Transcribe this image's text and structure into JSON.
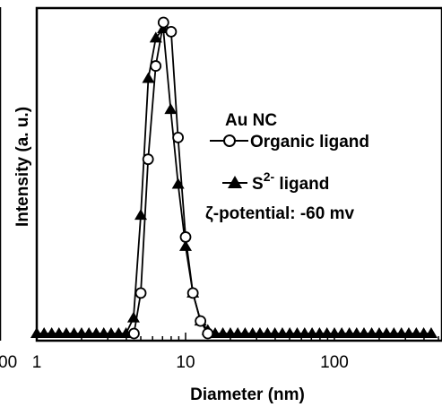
{
  "chart_data": {
    "type": "line",
    "title": "",
    "xlabel": "Diameter (nm)",
    "ylabel": "Intensity (a. u.)",
    "x_scale": "log",
    "xlim": [
      1,
      500
    ],
    "ylim": [
      0,
      100
    ],
    "grid": false,
    "x_tick_labels": [
      "1",
      "10",
      "100"
    ],
    "left_edge_tick_label": "00",
    "legend": {
      "placement": "center-right",
      "heading": "Au NC",
      "entries": [
        {
          "marker": "open-circle",
          "label": "Organic ligand"
        },
        {
          "marker": "filled-triangle",
          "label_main": "S",
          "label_sup": "2-",
          "label_rest": " ligand"
        }
      ],
      "note": "ζ-potential: -60 mv"
    },
    "series": [
      {
        "name": "Organic ligand",
        "marker": "open-circle",
        "color": "#000000",
        "points": [
          [
            4.5,
            0
          ],
          [
            5.0,
            13
          ],
          [
            5.6,
            56
          ],
          [
            6.3,
            86
          ],
          [
            7.1,
            100
          ],
          [
            8.0,
            97
          ],
          [
            8.9,
            63
          ],
          [
            10.0,
            31
          ],
          [
            11.2,
            13
          ],
          [
            12.6,
            4
          ],
          [
            14.1,
            0
          ]
        ]
      },
      {
        "name": "S2- ligand",
        "marker": "filled-triangle",
        "color": "#000000",
        "points": [
          [
            1.0,
            0
          ],
          [
            1.12,
            0
          ],
          [
            1.26,
            0
          ],
          [
            1.41,
            0
          ],
          [
            1.58,
            0
          ],
          [
            1.78,
            0
          ],
          [
            2.0,
            0
          ],
          [
            2.24,
            0
          ],
          [
            2.51,
            0
          ],
          [
            2.82,
            0
          ],
          [
            3.16,
            0
          ],
          [
            3.55,
            0
          ],
          [
            3.98,
            0
          ],
          [
            4.47,
            5
          ],
          [
            5.0,
            38
          ],
          [
            5.62,
            82
          ],
          [
            6.31,
            95
          ],
          [
            7.08,
            98
          ],
          [
            7.94,
            72
          ],
          [
            8.91,
            48
          ],
          [
            10.0,
            28
          ],
          [
            11.2,
            13
          ],
          [
            12.6,
            4
          ],
          [
            14.1,
            1
          ],
          [
            15.8,
            0
          ],
          [
            17.8,
            0
          ],
          [
            20.0,
            0
          ],
          [
            22.4,
            0
          ],
          [
            25.1,
            0
          ],
          [
            28.2,
            0
          ],
          [
            31.6,
            0
          ],
          [
            35.5,
            0
          ],
          [
            39.8,
            0
          ],
          [
            44.7,
            0
          ],
          [
            50.1,
            0
          ],
          [
            56.2,
            0
          ],
          [
            63.1,
            0
          ],
          [
            70.8,
            0
          ],
          [
            79.4,
            0
          ],
          [
            89.1,
            0
          ],
          [
            100,
            0
          ],
          [
            112,
            0
          ],
          [
            126,
            0
          ],
          [
            141,
            0
          ],
          [
            158,
            0
          ],
          [
            178,
            0
          ],
          [
            200,
            0
          ],
          [
            224,
            0
          ],
          [
            251,
            0
          ],
          [
            282,
            0
          ],
          [
            316,
            0
          ],
          [
            355,
            0
          ],
          [
            398,
            0
          ],
          [
            447,
            0
          ]
        ]
      }
    ]
  }
}
